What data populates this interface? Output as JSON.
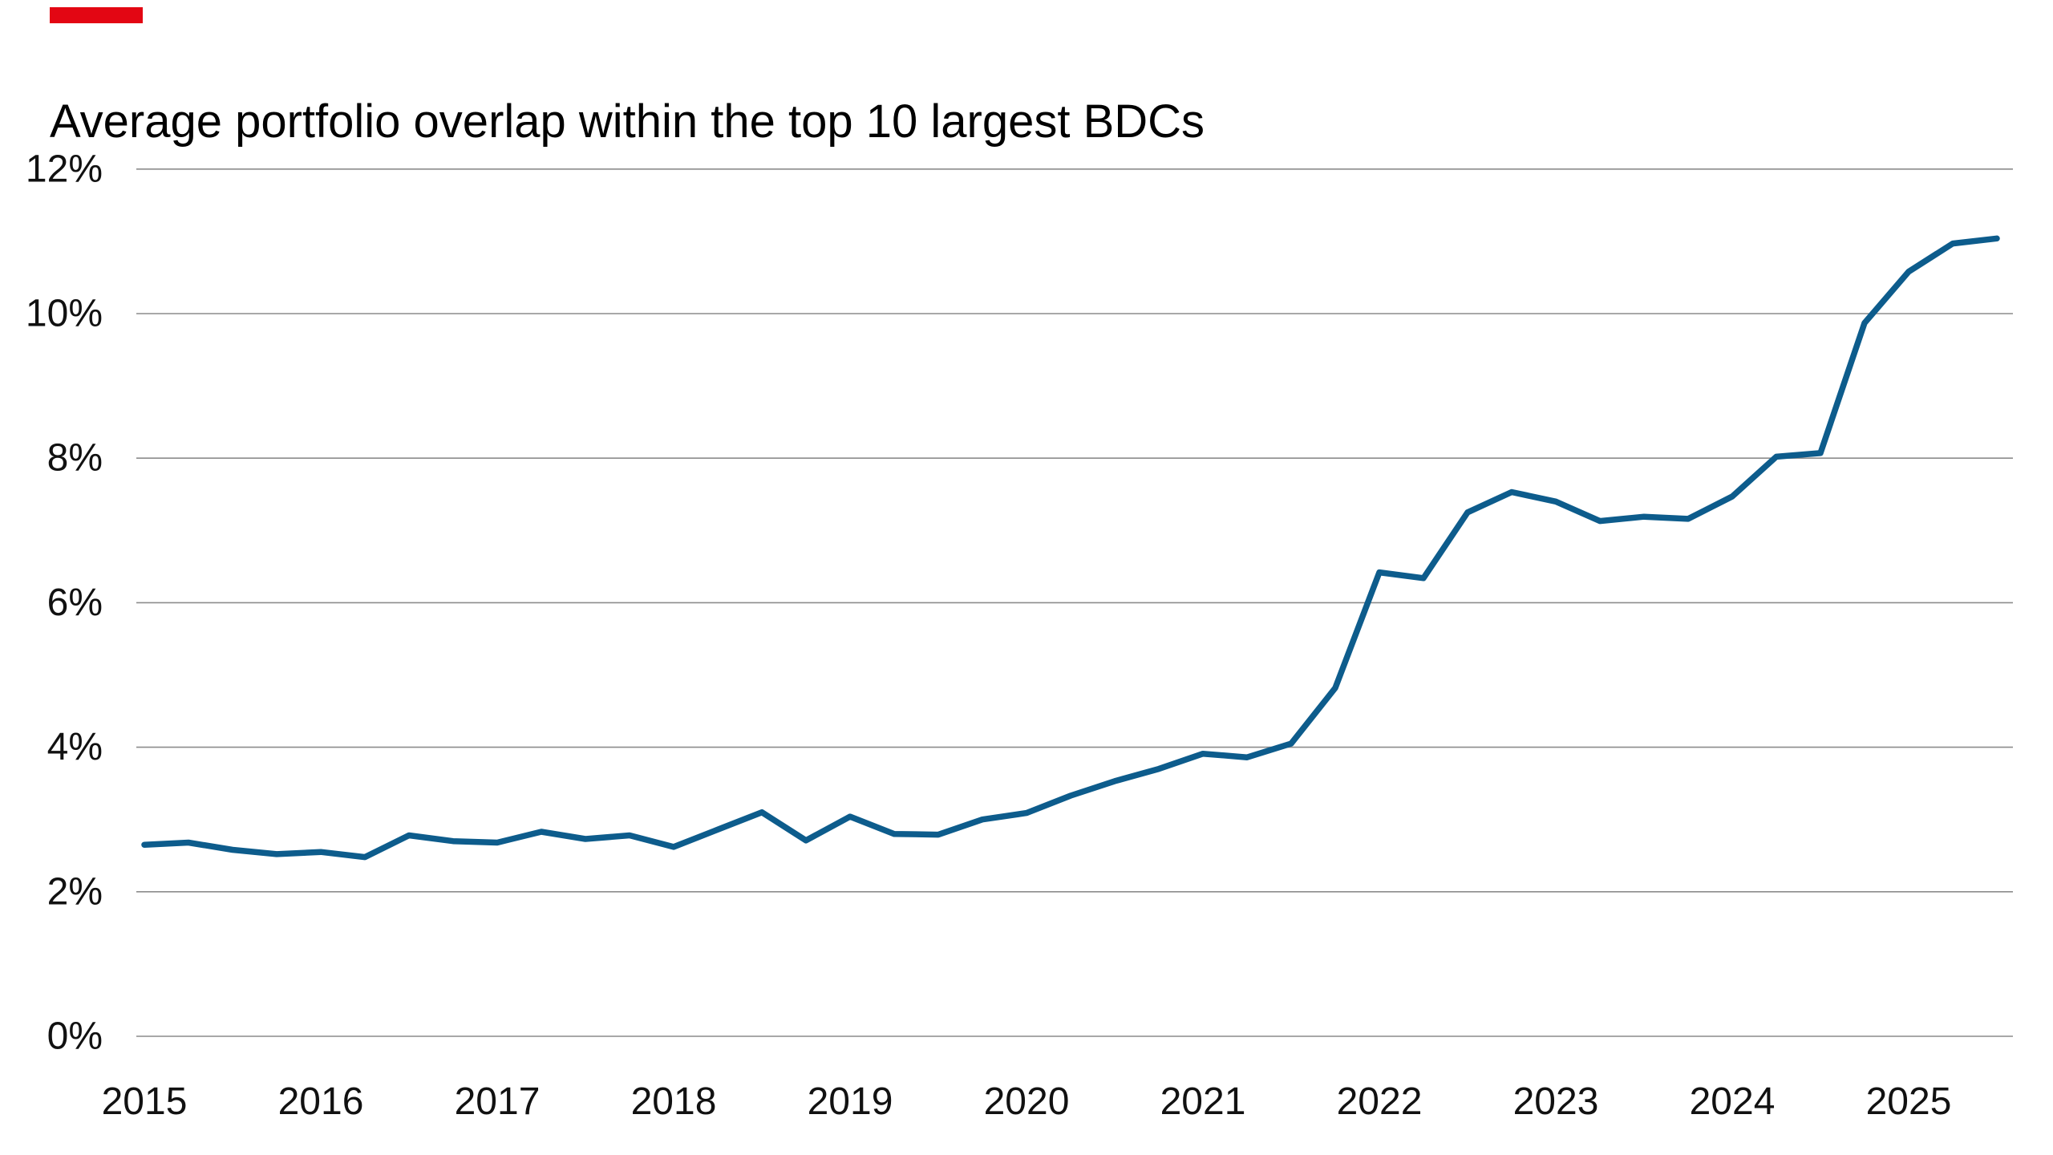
{
  "header": {
    "title": "Average portfolio overlap within the top 10 largest BDCs"
  },
  "colors": {
    "brand_bar": "#e30613",
    "line": "#0d5c8c",
    "gridline": "#8c8c8c",
    "tick_text": "#111111",
    "background": "#ffffff"
  },
  "chart_data": {
    "type": "line",
    "title": "Average portfolio overlap within the top 10 largest BDCs",
    "xlabel": "",
    "ylabel": "",
    "ylim": [
      0,
      12
    ],
    "y_tick_step": 2,
    "grid": "horizontal",
    "legend": "none",
    "y_tick_labels": [
      "0%",
      "2%",
      "4%",
      "6%",
      "8%",
      "10%",
      "12%"
    ],
    "x_tick_labels": [
      "2015",
      "2016",
      "2017",
      "2018",
      "2019",
      "2020",
      "2021",
      "2022",
      "2023",
      "2024",
      "2025"
    ],
    "x": [
      "2015 Q1",
      "2015 Q2",
      "2015 Q3",
      "2015 Q4",
      "2016 Q1",
      "2016 Q2",
      "2016 Q3",
      "2016 Q4",
      "2017 Q1",
      "2017 Q2",
      "2017 Q3",
      "2017 Q4",
      "2018 Q1",
      "2018 Q2",
      "2018 Q3",
      "2018 Q4",
      "2019 Q1",
      "2019 Q2",
      "2019 Q3",
      "2019 Q4",
      "2020 Q1",
      "2020 Q2",
      "2020 Q3",
      "2020 Q4",
      "2021 Q1",
      "2021 Q2",
      "2021 Q3",
      "2021 Q4",
      "2022 Q1",
      "2022 Q2",
      "2022 Q3",
      "2022 Q4",
      "2023 Q1",
      "2023 Q2",
      "2023 Q3",
      "2023 Q4",
      "2024 Q1",
      "2024 Q2",
      "2024 Q3",
      "2024 Q4",
      "2025 Q1",
      "2025 Q2",
      "2025 Q3"
    ],
    "series": [
      {
        "name": "Average portfolio overlap",
        "unit": "%",
        "values": [
          2.65,
          2.68,
          2.58,
          2.52,
          2.55,
          2.48,
          2.78,
          2.7,
          2.68,
          2.83,
          2.73,
          2.78,
          2.62,
          2.86,
          3.1,
          2.71,
          3.04,
          2.8,
          2.79,
          3.0,
          3.09,
          3.33,
          3.53,
          3.7,
          3.91,
          3.86,
          4.05,
          4.82,
          6.42,
          6.34,
          7.25,
          7.53,
          7.4,
          7.13,
          7.19,
          7.16,
          7.47,
          8.02,
          8.07,
          9.87,
          10.58,
          10.97,
          11.04
        ]
      }
    ]
  }
}
